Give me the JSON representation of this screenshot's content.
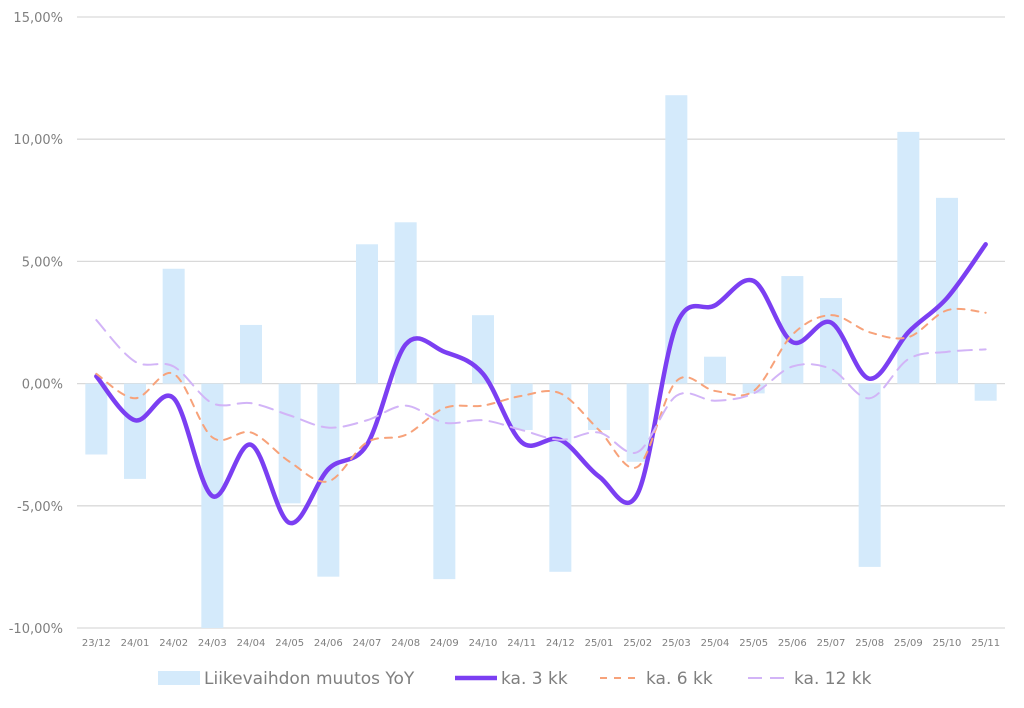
{
  "chart_data": {
    "type": "bar+line",
    "title": "",
    "xlabel": "",
    "ylabel": "",
    "ylim": [
      -10,
      15
    ],
    "ytick_step": 5,
    "yticks": [
      "-10,00%",
      "-5,00%",
      "0,00%",
      "5,00%",
      "10,00%",
      "15,00%"
    ],
    "grid": true,
    "legend_position": "bottom",
    "categories": [
      "23/12",
      "24/01",
      "24/02",
      "24/03",
      "24/04",
      "24/05",
      "24/06",
      "24/07",
      "24/08",
      "24/09",
      "24/10",
      "24/11",
      "24/12",
      "25/01",
      "25/02",
      "25/03",
      "25/04",
      "25/05",
      "25/06",
      "25/07",
      "25/08",
      "25/09",
      "25/10",
      "25/11"
    ],
    "series": [
      {
        "name": "Liikevaihdon muutos YoY",
        "kind": "bar",
        "color": "#d4eafb",
        "values": [
          -2.9,
          -3.9,
          4.7,
          -10.0,
          2.4,
          -4.9,
          -7.9,
          5.7,
          6.6,
          -8.0,
          2.8,
          -1.9,
          -7.7,
          -1.9,
          -3.2,
          11.8,
          1.1,
          -0.4,
          4.4,
          3.5,
          -7.5,
          10.3,
          7.6,
          -0.7
        ]
      },
      {
        "name": "ka. 3 kk",
        "kind": "line",
        "style": "solid",
        "color": "#7b3ff2",
        "values": [
          0.3,
          -1.5,
          -0.6,
          -4.6,
          -2.5,
          -5.7,
          -3.5,
          -2.5,
          1.6,
          1.3,
          0.4,
          -2.4,
          -2.3,
          -3.8,
          -4.5,
          2.4,
          3.2,
          4.2,
          1.7,
          2.5,
          0.2,
          2.1,
          3.5,
          5.7
        ]
      },
      {
        "name": "ka. 6 kk",
        "kind": "line",
        "style": "dashed",
        "color": "#f7a27a",
        "values": [
          0.4,
          -0.6,
          0.4,
          -2.2,
          -2.0,
          -3.2,
          -4.0,
          -2.4,
          -2.1,
          -1.0,
          -0.9,
          -0.5,
          -0.4,
          -1.9,
          -3.4,
          0.1,
          -0.3,
          -0.3,
          2.0,
          2.8,
          2.1,
          1.9,
          3.0,
          2.9
        ]
      },
      {
        "name": "ka. 12 kk",
        "kind": "line",
        "style": "longdash",
        "color": "#d2b4f7",
        "values": [
          2.6,
          0.9,
          0.7,
          -0.8,
          -0.8,
          -1.3,
          -1.8,
          -1.5,
          -0.9,
          -1.6,
          -1.5,
          -1.9,
          -2.3,
          -2.0,
          -2.8,
          -0.5,
          -0.7,
          -0.4,
          0.7,
          0.6,
          -0.6,
          1.0,
          1.3,
          1.4
        ]
      }
    ]
  }
}
